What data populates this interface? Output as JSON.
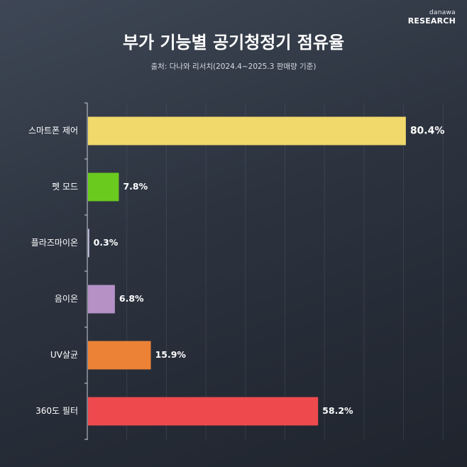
{
  "brand": {
    "small": "danawa",
    "big": "RESEARCH"
  },
  "title": "부가 기능별 공기청정기 점유율",
  "subtitle": "출처: 다나와 리서치(2024.4~2025.3 판매량 기준)",
  "colors": {
    "bar_smart": "#f2d96b",
    "bar_pet": "#6acb1e",
    "bar_plasma": "#c9c9e8",
    "bar_ion": "#b591c6",
    "bar_uv": "#ec8236",
    "bar_360": "#ee4a4e",
    "grid": "#566070",
    "axis": "#c9ced6"
  },
  "chart_data": {
    "type": "bar",
    "orientation": "horizontal",
    "categories": [
      "스마트폰 제어",
      "펫 모드",
      "플라즈마이온",
      "음이온",
      "UV살균",
      "360도 필터"
    ],
    "values": [
      80.4,
      7.8,
      0.3,
      6.8,
      15.9,
      58.2
    ],
    "value_labels": [
      "80.4%",
      "7.8%",
      "0.3%",
      "6.8%",
      "15.9%",
      "58.2%"
    ],
    "unit": "%",
    "xlim": [
      0,
      100
    ],
    "grid": true,
    "title": "부가 기능별 공기청정기 점유율",
    "xlabel": "",
    "ylabel": ""
  }
}
